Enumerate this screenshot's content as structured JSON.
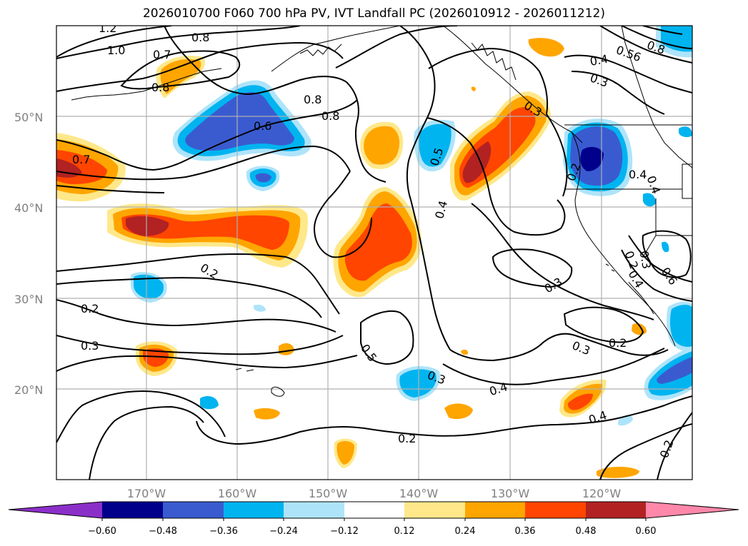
{
  "title": "2026010700 F060 700 hPa PV, IVT Landfall PC (2026010912 - 2026011212)",
  "map": {
    "lat_labels": [
      "50°N",
      "40°N",
      "30°N",
      "20°N"
    ],
    "lon_labels": [
      "170°W",
      "160°W",
      "150°W",
      "140°W",
      "130°W",
      "120°W"
    ],
    "contour_labels": [
      "1.2",
      "1.0",
      "0.8",
      "0.7",
      "0.8",
      "0.8",
      "0.6",
      "0.7",
      "0.8",
      "0.5",
      "0.4",
      "0.4",
      "0.3",
      "0.2",
      "0.2",
      "0.3",
      "0.5",
      "0.3",
      "0.4",
      "0.3",
      "0.2",
      "0.2",
      "0.3",
      "0.4",
      "0.2",
      "0.4",
      "0.56",
      "0.8",
      "0.4",
      "0.3",
      "0.2",
      "0.4",
      "0.3",
      "0.6",
      "0.2"
    ],
    "colors": {
      "neg_060": "#8b2fc9",
      "neg_048": "#00008b",
      "neg_036": "#3a5bd0",
      "neg_024": "#00b4f0",
      "neg_012": "#aee4fa",
      "neutral": "#ffffff",
      "pos_012": "#ffe88a",
      "pos_024": "#ffa500",
      "pos_036": "#ff4500",
      "pos_048": "#b22222",
      "pos_060": "#ff88aa"
    }
  },
  "colorbar": {
    "ticks": [
      "−0.60",
      "−0.48",
      "−0.36",
      "−0.24",
      "−0.12",
      "0.12",
      "0.24",
      "0.36",
      "0.48",
      "0.60"
    ]
  }
}
